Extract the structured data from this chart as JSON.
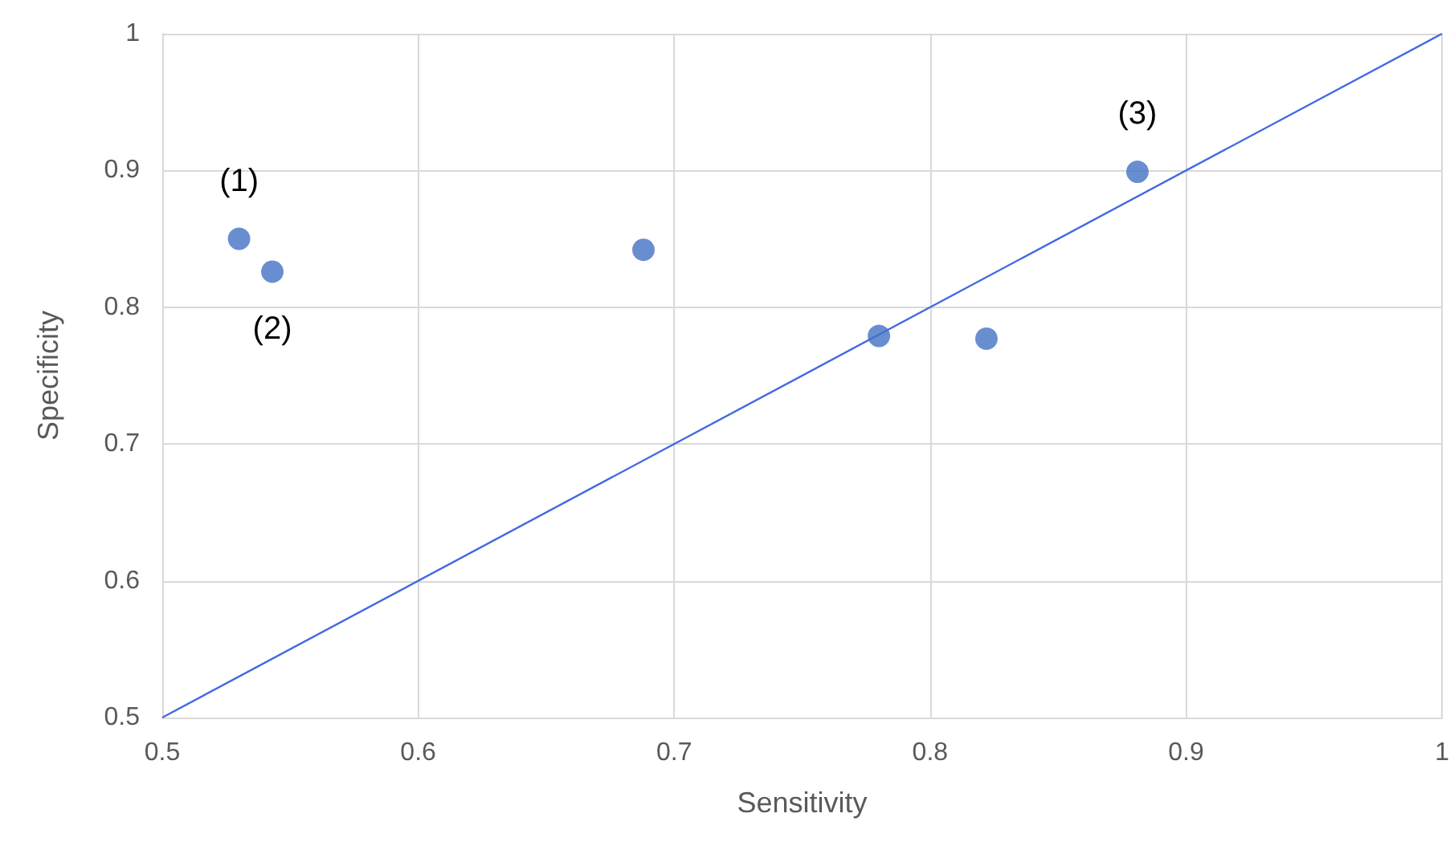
{
  "chart_data": {
    "type": "scatter",
    "xlabel": "Sensitivity",
    "ylabel": "Specificity",
    "xlim": [
      0.5,
      1
    ],
    "xticks": [
      0.5,
      0.6,
      0.7,
      0.8,
      0.9,
      1
    ],
    "ylim": [
      0.5,
      1
    ],
    "yticks": [
      0.5,
      0.6,
      0.7,
      0.8,
      0.9,
      1
    ],
    "grid": true,
    "series": [
      {
        "marker": "circle",
        "color": "#4472c4",
        "x": [
          0.53,
          0.543,
          0.688,
          0.78,
          0.822,
          0.881
        ],
        "values": [
          0.85,
          0.826,
          0.842,
          0.779,
          0.777,
          0.899
        ]
      },
      {
        "type": "line",
        "marker": "none",
        "color": "#4169e1",
        "x": [
          0.5,
          1
        ],
        "values": [
          0.5,
          1
        ]
      }
    ],
    "annotations": [
      {
        "text": "(1)",
        "x": 0.53,
        "y": 0.85
      },
      {
        "text": "(2)",
        "x": 0.543,
        "y": 0.826
      },
      {
        "text": "(3)",
        "x": 0.881,
        "y": 0.899
      }
    ]
  }
}
